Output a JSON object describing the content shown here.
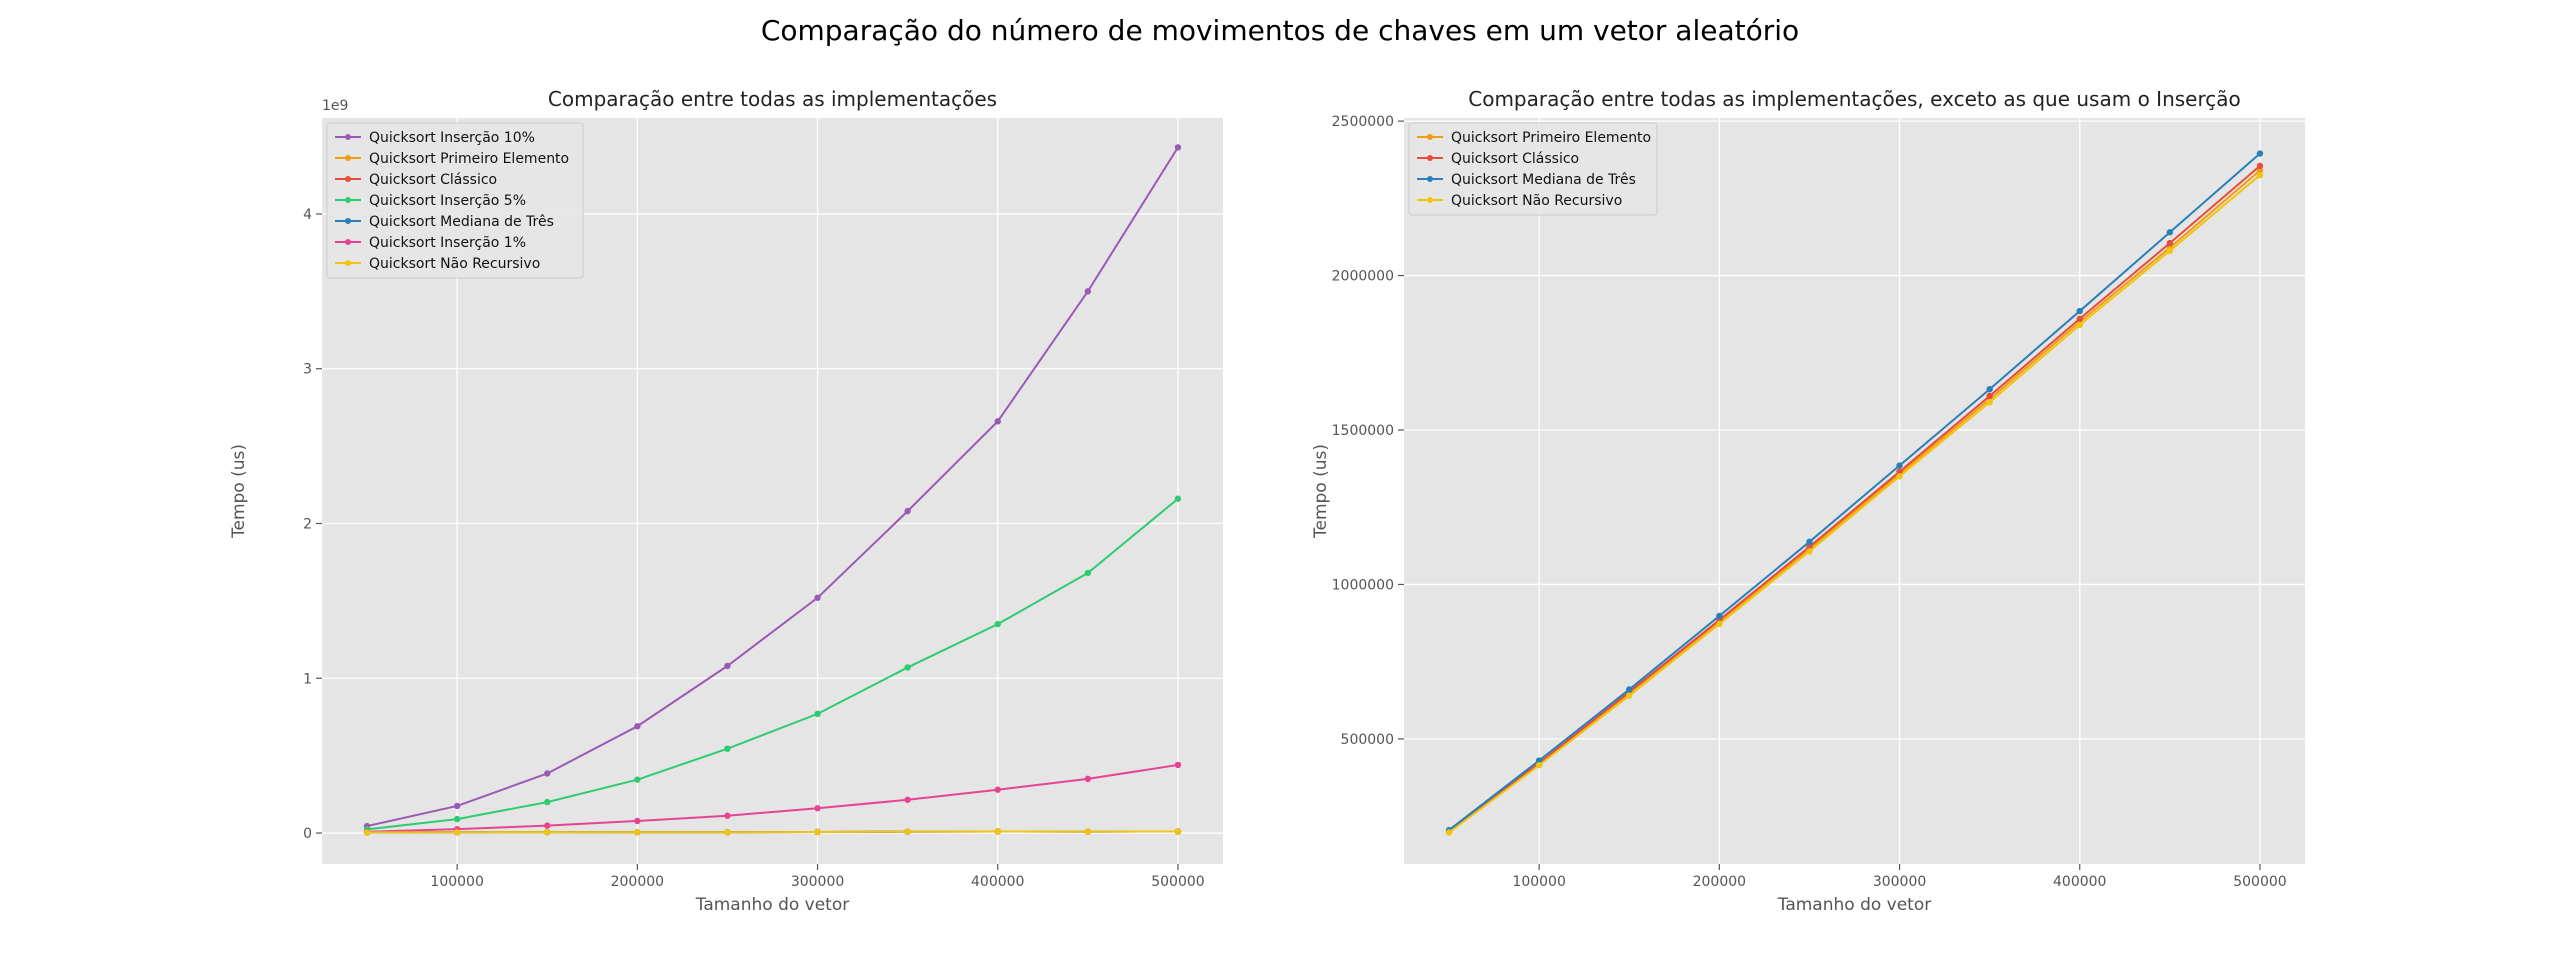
{
  "figure": {
    "suptitle": "Comparação do número de movimentos de chaves em um vetor aleatório"
  },
  "colors": {
    "Quicksort Inserção 10%": "#9b59b6",
    "Quicksort Primeiro Elemento": "#f39c12",
    "Quicksort Clássico": "#e74c3c",
    "Quicksort Inserção 5%": "#2ecc71",
    "Quicksort Mediana de Três": "#2980b9",
    "Quicksort Inserção 1%": "#e84393",
    "Quicksort Não Recursivo": "#f1c40f",
    "axes_bg": "#e5e5e5",
    "grid": "#ffffff"
  },
  "chart_data": [
    {
      "type": "line",
      "title": "Comparação entre todas as implementações",
      "xlabel": "Tamanho do vetor",
      "ylabel": "Tempo (us)",
      "y_scale_label": "1e9",
      "xlim": [
        25000,
        525000
      ],
      "ylim": [
        -0.2,
        4.62
      ],
      "xticks": [
        100000,
        200000,
        300000,
        400000,
        500000
      ],
      "xtick_labels": [
        "100000",
        "200000",
        "300000",
        "400000",
        "500000"
      ],
      "yticks": [
        0,
        1,
        2,
        3,
        4
      ],
      "ytick_labels": [
        "0",
        "1",
        "2",
        "3",
        "4"
      ],
      "grid": true,
      "legend": "top-left",
      "x": [
        50000,
        100000,
        150000,
        200000,
        250000,
        300000,
        350000,
        400000,
        450000,
        500000
      ],
      "series": [
        {
          "name": "Quicksort Inserção 10%",
          "values": [
            0.045,
            0.175,
            0.385,
            0.69,
            1.08,
            1.52,
            2.08,
            2.66,
            3.5,
            4.43
          ]
        },
        {
          "name": "Quicksort Primeiro Elemento",
          "values": [
            0.004,
            0.006,
            0.006,
            0.005,
            0.005,
            0.007,
            0.009,
            0.01,
            0.009,
            0.01
          ]
        },
        {
          "name": "Quicksort Clássico",
          "values": [
            0.004,
            0.005,
            0.006,
            0.005,
            0.005,
            0.007,
            0.009,
            0.01,
            0.009,
            0.01
          ]
        },
        {
          "name": "Quicksort Inserção 5%",
          "values": [
            0.024,
            0.09,
            0.2,
            0.345,
            0.545,
            0.77,
            1.07,
            1.35,
            1.68,
            2.16
          ]
        },
        {
          "name": "Quicksort Mediana de Três",
          "values": [
            0.004,
            0.005,
            0.006,
            0.005,
            0.005,
            0.007,
            0.009,
            0.01,
            0.009,
            0.01
          ]
        },
        {
          "name": "Quicksort Inserção 1%",
          "values": [
            0.008,
            0.025,
            0.048,
            0.078,
            0.112,
            0.16,
            0.215,
            0.28,
            0.35,
            0.44
          ]
        },
        {
          "name": "Quicksort Não Recursivo",
          "values": [
            0.004,
            0.005,
            0.006,
            0.005,
            0.005,
            0.007,
            0.009,
            0.01,
            0.009,
            0.01
          ]
        }
      ]
    },
    {
      "type": "line",
      "title": "Comparação entre todas as implementações, exceto as que usam o Inserção",
      "xlabel": "Tamanho do vetor",
      "ylabel": "Tempo (us)",
      "xlim": [
        25000,
        525000
      ],
      "ylim": [
        95000,
        2510000
      ],
      "xticks": [
        100000,
        200000,
        300000,
        400000,
        500000
      ],
      "xtick_labels": [
        "100000",
        "200000",
        "300000",
        "400000",
        "500000"
      ],
      "yticks": [
        500000,
        1000000,
        1500000,
        2000000,
        2500000
      ],
      "ytick_labels": [
        "500000",
        "1000000",
        "1500000",
        "2000000",
        "2500000"
      ],
      "grid": true,
      "legend": "top-left",
      "x": [
        50000,
        100000,
        150000,
        200000,
        250000,
        300000,
        350000,
        400000,
        450000,
        500000
      ],
      "series": [
        {
          "name": "Quicksort Primeiro Elemento",
          "values": [
            200000,
            420000,
            648000,
            880000,
            1115000,
            1358000,
            1600000,
            1850000,
            2090000,
            2340000
          ]
        },
        {
          "name": "Quicksort Clássico",
          "values": [
            201000,
            422000,
            652000,
            885000,
            1122000,
            1365000,
            1610000,
            1860000,
            2105000,
            2355000
          ]
        },
        {
          "name": "Quicksort Mediana de Três",
          "values": [
            205000,
            430000,
            660000,
            898000,
            1138000,
            1385000,
            1632000,
            1885000,
            2140000,
            2395000
          ]
        },
        {
          "name": "Quicksort Não Recursivo",
          "values": [
            197000,
            415000,
            640000,
            872000,
            1107000,
            1350000,
            1590000,
            1840000,
            2080000,
            2325000
          ]
        }
      ]
    }
  ]
}
